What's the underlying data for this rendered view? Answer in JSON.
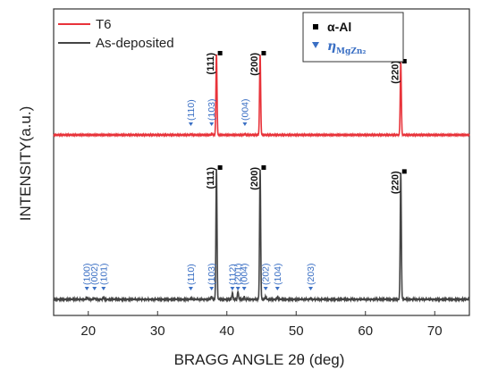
{
  "chart_data": {
    "type": "line",
    "xlabel": "BRAGG ANGLE 2θ (deg)",
    "ylabel": "INTENSITY(a.u.)",
    "xlim": [
      15,
      75
    ],
    "xticks": [
      20,
      30,
      40,
      50,
      60,
      70
    ],
    "grid": false,
    "legend_lines": {
      "placement": "top-left",
      "entries": [
        "T6",
        "As-deposited"
      ]
    },
    "legend_phases": {
      "placement": "top-right",
      "entries": [
        {
          "label": "α-Al",
          "marker": "square",
          "color": "#000000"
        },
        {
          "label": "η",
          "subscript": "MgZn₂",
          "marker": "triangle-down",
          "color": "#3a6fc4"
        }
      ]
    },
    "series": [
      {
        "name": "T6",
        "color": "#e8333a",
        "baseline": 1.0,
        "peaks": [
          {
            "x": 38.5,
            "height": 1.0
          },
          {
            "x": 44.8,
            "height": 1.0
          },
          {
            "x": 65.1,
            "height": 0.9
          },
          {
            "x": 34.8,
            "height": 0.01
          },
          {
            "x": 37.8,
            "height": 0.015
          },
          {
            "x": 42.6,
            "height": 0.01
          }
        ],
        "al_peaks": [
          {
            "x": 38.5,
            "label": "(111)"
          },
          {
            "x": 44.8,
            "label": "(200)"
          },
          {
            "x": 65.1,
            "label": "(220)"
          }
        ],
        "eta_peaks": [
          {
            "x": 34.8,
            "label": "(110)"
          },
          {
            "x": 37.8,
            "label": "(103)"
          },
          {
            "x": 42.6,
            "label": "(004)"
          }
        ]
      },
      {
        "name": "As-deposited",
        "color": "#444444",
        "baseline": 0.0,
        "peaks": [
          {
            "x": 38.5,
            "height": 1.0
          },
          {
            "x": 44.8,
            "height": 1.0
          },
          {
            "x": 65.1,
            "height": 0.97
          },
          {
            "x": 19.8,
            "height": 0.015
          },
          {
            "x": 20.9,
            "height": 0.01
          },
          {
            "x": 22.2,
            "height": 0.015
          },
          {
            "x": 34.8,
            "height": 0.01
          },
          {
            "x": 37.8,
            "height": 0.02
          },
          {
            "x": 40.8,
            "height": 0.05
          },
          {
            "x": 41.6,
            "height": 0.06
          },
          {
            "x": 42.5,
            "height": 0.02
          },
          {
            "x": 45.6,
            "height": 0.02
          },
          {
            "x": 47.3,
            "height": 0.015
          },
          {
            "x": 52.1,
            "height": 0.01
          }
        ],
        "al_peaks": [
          {
            "x": 38.5,
            "label": "(111)"
          },
          {
            "x": 44.8,
            "label": "(200)"
          },
          {
            "x": 65.1,
            "label": "(220)"
          }
        ],
        "eta_peaks": [
          {
            "x": 19.8,
            "label": "(100)"
          },
          {
            "x": 20.9,
            "label": "(002)"
          },
          {
            "x": 22.2,
            "label": "(101)"
          },
          {
            "x": 34.8,
            "label": "(110)"
          },
          {
            "x": 37.8,
            "label": "(103)"
          },
          {
            "x": 40.8,
            "label": "(112)"
          },
          {
            "x": 41.6,
            "label": "(201)"
          },
          {
            "x": 42.5,
            "label": "(004)"
          },
          {
            "x": 45.6,
            "label": "(202)"
          },
          {
            "x": 47.3,
            "label": "(104)"
          },
          {
            "x": 52.1,
            "label": "(203)"
          }
        ]
      }
    ]
  }
}
